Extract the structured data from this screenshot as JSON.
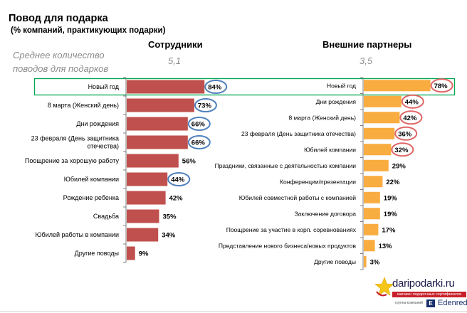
{
  "title": "Повод для подарка",
  "subtitle": "(% компаний, практикующих подарки)",
  "avg_label_line1": "Среднее количество",
  "avg_label_line2": "поводов для подарков",
  "logo": {
    "site": "daripodarki.ru",
    "tagline": "магазин подарочных сертификатов",
    "group": "группа компаний",
    "brand": "Edenred",
    "brand_mark": "E"
  },
  "colors": {
    "employees_bar": "#c0504d",
    "partners_bar": "#f9ac3f",
    "employees_circle": "#4f81bd",
    "partners_circle": "#e06666",
    "highlight_box": "#00a651"
  },
  "chart_data": [
    {
      "type": "bar",
      "orientation": "horizontal",
      "title": "Сотрудники",
      "average": "5,1",
      "unit": "%",
      "xlim": [
        0,
        100
      ],
      "categories": [
        "Новый год",
        "8 марта (Женский день)",
        "Дни рождения",
        "23 февраля (День защитника отечества)",
        "Поощрение за хорошую работу",
        "Юбилей компании",
        "Рождение ребенка",
        "Свадьба",
        "Юбилей работы в компании",
        "Другие поводы"
      ],
      "values": [
        84,
        73,
        66,
        66,
        56,
        44,
        42,
        35,
        34,
        9
      ],
      "circled": [
        true,
        true,
        true,
        true,
        false,
        true,
        false,
        false,
        false,
        false
      ]
    },
    {
      "type": "bar",
      "orientation": "horizontal",
      "title": "Внешние партнеры",
      "average": "3,5",
      "unit": "%",
      "xlim": [
        0,
        100
      ],
      "categories": [
        "Новый год",
        "Дни рождения",
        "8 марта (Женский день)",
        "23 февраля (День защитника отечества)",
        "Юбилей компании",
        "Праздники, связанные с деятельностью компании",
        "Конференции/презентации",
        "Юбилей совместной работы с компанией",
        "Заключение договора",
        "Поощрение за участие в корп. соревнованиях",
        "Представление нового бизнеса/новых продуктов",
        "Другие поводы"
      ],
      "values": [
        78,
        44,
        42,
        36,
        32,
        29,
        22,
        19,
        19,
        17,
        13,
        3
      ],
      "circled": [
        true,
        true,
        true,
        true,
        true,
        false,
        false,
        false,
        false,
        false,
        false,
        false
      ]
    }
  ],
  "highlighted_category": "Новый год"
}
